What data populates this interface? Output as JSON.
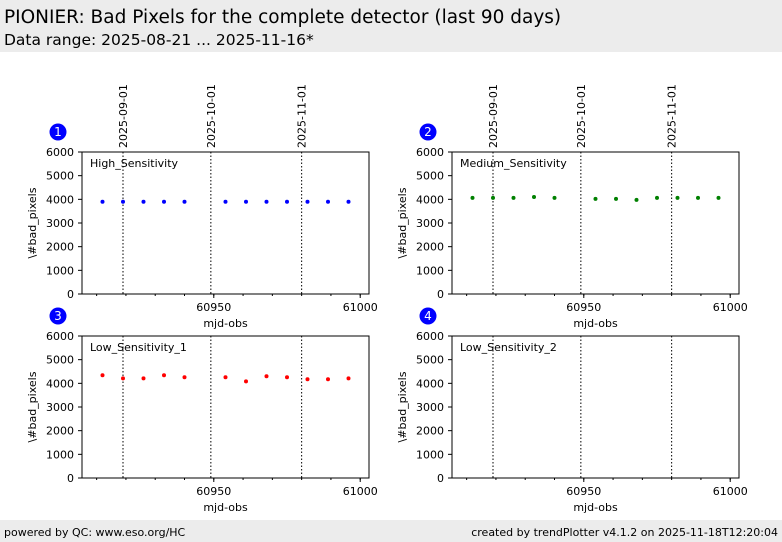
{
  "header": {
    "title": "PIONIER: Bad Pixels for the complete detector (last 90 days)",
    "subtitle": "Data range: 2025-08-21 ... 2025-11-16*"
  },
  "footer": {
    "left": "powered by QC: www.eso.org/HC",
    "right": "created by trendPlotter v4.1.2 on 2025-11-18T12:20:04"
  },
  "chart_data": [
    {
      "type": "scatter",
      "number": "1",
      "title": "High_Sensitivity",
      "xlabel": "mjd-obs",
      "ylabel": "\\#bad_pixels",
      "color": "#0000ff",
      "xlim": [
        60905,
        61003
      ],
      "ylim": [
        0,
        6000
      ],
      "xticks": [
        60950,
        61000
      ],
      "yticks": [
        0,
        1000,
        2000,
        3000,
        4000,
        5000,
        6000
      ],
      "date_lines": [
        {
          "mjd": 60919,
          "label": "2025-09-01"
        },
        {
          "mjd": 60949,
          "label": "2025-10-01"
        },
        {
          "mjd": 60980,
          "label": "2025-11-01"
        }
      ],
      "x": [
        60912,
        60919,
        60926,
        60933,
        60940,
        60954,
        60961,
        60968,
        60975,
        60982,
        60989,
        60996
      ],
      "y": [
        3900,
        3900,
        3900,
        3900,
        3900,
        3900,
        3900,
        3900,
        3900,
        3900,
        3900,
        3900
      ]
    },
    {
      "type": "scatter",
      "number": "2",
      "title": "Medium_Sensitivity",
      "xlabel": "mjd-obs",
      "ylabel": "\\#bad_pixels",
      "color": "#008000",
      "xlim": [
        60905,
        61003
      ],
      "ylim": [
        0,
        6000
      ],
      "xticks": [
        60950,
        61000
      ],
      "yticks": [
        0,
        1000,
        2000,
        3000,
        4000,
        5000,
        6000
      ],
      "date_lines": [
        {
          "mjd": 60919,
          "label": "2025-09-01"
        },
        {
          "mjd": 60949,
          "label": "2025-10-01"
        },
        {
          "mjd": 60980,
          "label": "2025-11-01"
        }
      ],
      "x": [
        60912,
        60919,
        60926,
        60933,
        60940,
        60954,
        60961,
        60968,
        60975,
        60982,
        60989,
        60996
      ],
      "y": [
        4060,
        4060,
        4060,
        4100,
        4060,
        4020,
        4020,
        3975,
        4060,
        4060,
        4060,
        4060
      ]
    },
    {
      "type": "scatter",
      "number": "3",
      "title": "Low_Sensitivity_1",
      "xlabel": "mjd-obs",
      "ylabel": "\\#bad_pixels",
      "color": "#ff0000",
      "xlim": [
        60905,
        61003
      ],
      "ylim": [
        0,
        6000
      ],
      "xticks": [
        60950,
        61000
      ],
      "yticks": [
        0,
        1000,
        2000,
        3000,
        4000,
        5000,
        6000
      ],
      "date_lines": [
        {
          "mjd": 60919,
          "label": ""
        },
        {
          "mjd": 60949,
          "label": ""
        },
        {
          "mjd": 60980,
          "label": ""
        }
      ],
      "x": [
        60912,
        60919,
        60926,
        60933,
        60940,
        60954,
        60961,
        60968,
        60975,
        60982,
        60989,
        60996
      ],
      "y": [
        4340,
        4210,
        4210,
        4340,
        4255,
        4255,
        4085,
        4300,
        4255,
        4170,
        4170,
        4210
      ]
    },
    {
      "type": "scatter",
      "number": "4",
      "title": "Low_Sensitivity_2",
      "xlabel": "mjd-obs",
      "ylabel": "\\#bad_pixels",
      "color": "#000000",
      "xlim": [
        60905,
        61003
      ],
      "ylim": [
        0,
        6000
      ],
      "xticks": [
        60950,
        61000
      ],
      "yticks": [
        0,
        1000,
        2000,
        3000,
        4000,
        5000,
        6000
      ],
      "date_lines": [
        {
          "mjd": 60919,
          "label": ""
        },
        {
          "mjd": 60949,
          "label": ""
        },
        {
          "mjd": 60980,
          "label": ""
        }
      ],
      "x": [],
      "y": []
    }
  ]
}
